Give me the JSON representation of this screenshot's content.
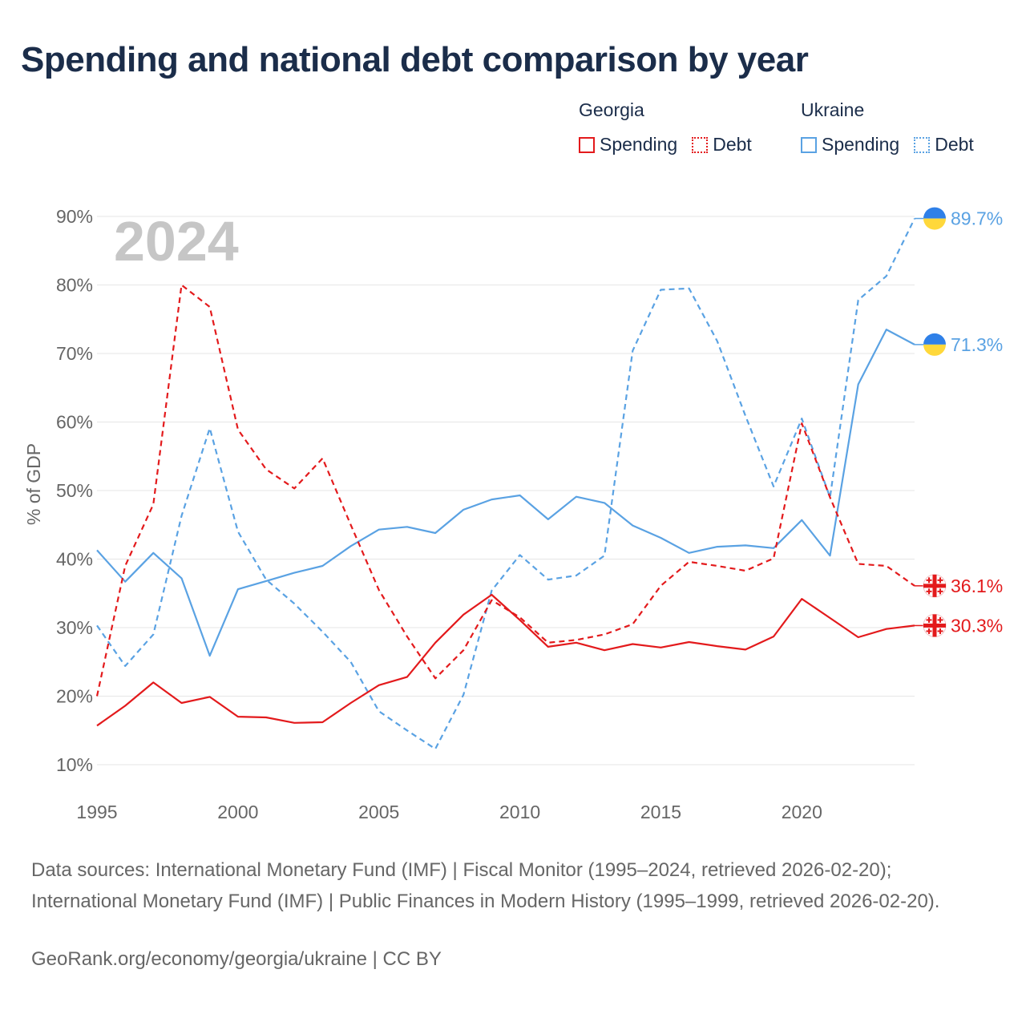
{
  "title": "Spending and national debt comparison by year",
  "colors": {
    "georgia": "#e31a1c",
    "ukraine": "#5aa2e3",
    "grid": "#e6e6e6",
    "axis_text": "#666666",
    "year_watermark": "#c6c6c6",
    "flag_blue": "#2f80e8",
    "flag_yellow": "#ffd83b"
  },
  "legend": {
    "georgia": {
      "name": "Georgia",
      "spending": "Spending",
      "debt": "Debt"
    },
    "ukraine": {
      "name": "Ukraine",
      "spending": "Spending",
      "debt": "Debt"
    }
  },
  "chart_data": {
    "type": "line",
    "title": "Spending and national debt comparison by year",
    "year_label": "2024",
    "xlabel": "",
    "ylabel": "% of GDP",
    "xlim": [
      1995,
      2024
    ],
    "ylim": [
      10,
      90
    ],
    "xticks": [
      1995,
      2000,
      2005,
      2010,
      2015,
      2020
    ],
    "yticks": [
      10,
      20,
      30,
      40,
      50,
      60,
      70,
      80,
      90
    ],
    "ytick_labels": [
      "10%",
      "20%",
      "30%",
      "40%",
      "50%",
      "60%",
      "70%",
      "80%",
      "90%"
    ],
    "grid": true,
    "x": [
      1995,
      1996,
      1997,
      1998,
      1999,
      2000,
      2001,
      2002,
      2003,
      2004,
      2005,
      2006,
      2007,
      2008,
      2009,
      2010,
      2011,
      2012,
      2013,
      2014,
      2015,
      2016,
      2017,
      2018,
      2019,
      2020,
      2021,
      2022,
      2023,
      2024
    ],
    "series": [
      {
        "name": "Georgia Spending",
        "country": "georgia",
        "style": "solid",
        "values": [
          15.7,
          18.6,
          22.0,
          19.0,
          19.9,
          17.0,
          16.9,
          16.1,
          16.2,
          19.0,
          21.6,
          22.8,
          27.8,
          31.9,
          34.8,
          31.1,
          27.2,
          27.8,
          26.7,
          27.6,
          27.1,
          27.9,
          27.3,
          26.8,
          28.7,
          34.2,
          31.4,
          28.6,
          29.8,
          30.3
        ],
        "end_label": "30.3%"
      },
      {
        "name": "Georgia Debt",
        "country": "georgia",
        "style": "dashed",
        "values": [
          20.0,
          39.0,
          48.0,
          80.0,
          76.8,
          58.9,
          53.1,
          50.3,
          54.7,
          45.0,
          35.5,
          28.7,
          22.6,
          26.7,
          34.0,
          31.5,
          27.8,
          28.2,
          29.0,
          30.5,
          36.1,
          39.6,
          39.0,
          38.3,
          40.1,
          59.8,
          49.0,
          39.3,
          39.0,
          36.1
        ],
        "end_label": "36.1%"
      },
      {
        "name": "Ukraine Spending",
        "country": "ukraine",
        "style": "solid",
        "values": [
          41.3,
          36.7,
          40.9,
          37.2,
          25.9,
          35.6,
          36.8,
          38.0,
          39.0,
          41.9,
          44.3,
          44.7,
          43.8,
          47.2,
          48.7,
          49.3,
          45.8,
          49.1,
          48.2,
          44.9,
          43.1,
          40.9,
          41.8,
          42.0,
          41.6,
          45.7,
          40.5,
          65.5,
          73.5,
          71.3
        ],
        "end_label": "71.3%"
      },
      {
        "name": "Ukraine Debt",
        "country": "ukraine",
        "style": "dashed",
        "values": [
          30.3,
          24.4,
          29.0,
          46.3,
          59.1,
          44.0,
          37.0,
          33.5,
          29.4,
          25.0,
          17.8,
          15.0,
          12.3,
          20.2,
          35.4,
          40.6,
          37.0,
          37.6,
          40.5,
          70.4,
          79.3,
          79.5,
          71.8,
          60.9,
          50.6,
          60.5,
          49.0,
          77.8,
          81.3,
          89.7
        ],
        "end_label": "89.7%"
      }
    ]
  },
  "source_text": "Data sources: International Monetary Fund (IMF) | Fiscal Monitor (1995–2024, retrieved 2026-02-20); International Monetary Fund (IMF) | Public Finances in Modern History (1995–1999, retrieved 2026-02-20).",
  "credit_text": "GeoRank.org/economy/georgia/ukraine | CC BY"
}
